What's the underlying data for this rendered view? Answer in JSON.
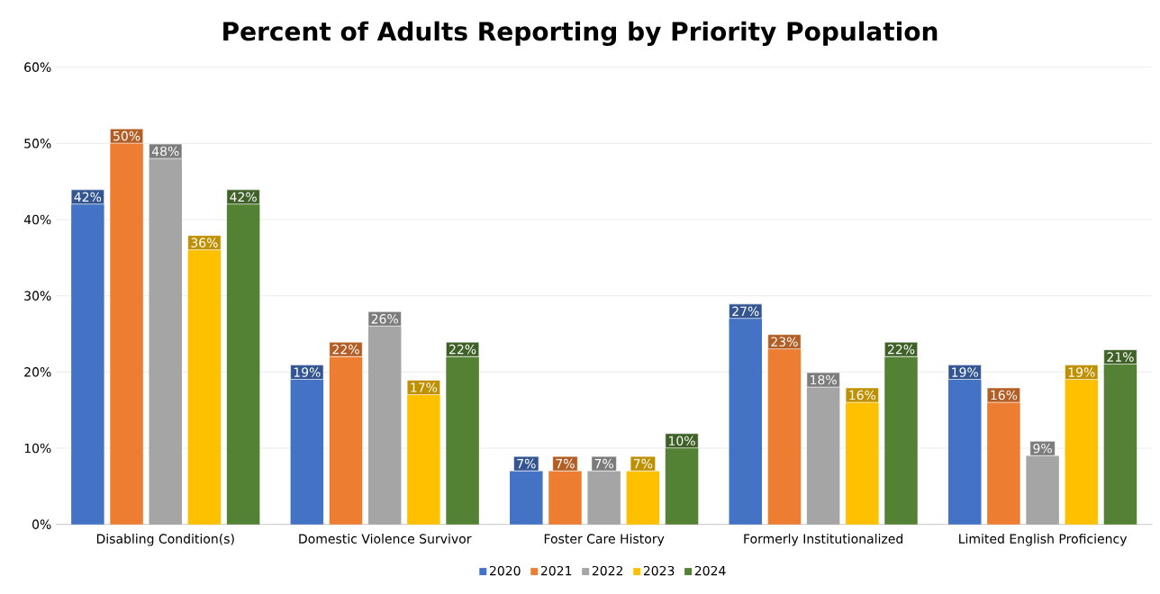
{
  "chart_data": {
    "type": "bar",
    "title": "Percent of Adults Reporting by Priority Population",
    "categories": [
      "Disabling Condition(s)",
      "Domestic Violence Survivor",
      "Foster Care History",
      "Formerly Institutionalized",
      "Limited English Proficiency"
    ],
    "series": [
      {
        "name": "2020",
        "color": "#4472c4",
        "values": [
          42,
          19,
          7,
          27,
          19
        ],
        "value_labels": [
          "42%",
          "19%",
          "7%",
          "27%",
          "19%"
        ]
      },
      {
        "name": "2021",
        "color": "#ed7d31",
        "values": [
          50,
          22,
          7,
          23,
          16
        ],
        "value_labels": [
          "50%",
          "22%",
          "7%",
          "23%",
          "16%"
        ]
      },
      {
        "name": "2022",
        "color": "#a5a5a5",
        "values": [
          48,
          26,
          7,
          18,
          9
        ],
        "value_labels": [
          "48%",
          "26%",
          "7%",
          "18%",
          "9%"
        ]
      },
      {
        "name": "2023",
        "color": "#ffc000",
        "values": [
          36,
          17,
          7,
          16,
          19
        ],
        "value_labels": [
          "36%",
          "17%",
          "7%",
          "16%",
          "19%"
        ]
      },
      {
        "name": "2024",
        "color": "#548235",
        "values": [
          42,
          22,
          10,
          22,
          21
        ],
        "value_labels": [
          "42%",
          "22%",
          "10%",
          "22%",
          "21%"
        ]
      }
    ],
    "ylim": [
      0,
      60
    ],
    "yticks": [
      {
        "value": 0,
        "label": "0%"
      },
      {
        "value": 10,
        "label": "10%"
      },
      {
        "value": 20,
        "label": "20%"
      },
      {
        "value": 30,
        "label": "30%"
      },
      {
        "value": 40,
        "label": "40%"
      },
      {
        "value": 50,
        "label": "50%"
      },
      {
        "value": 60,
        "label": "60%"
      }
    ],
    "grid": "y",
    "legend": "bottom"
  }
}
